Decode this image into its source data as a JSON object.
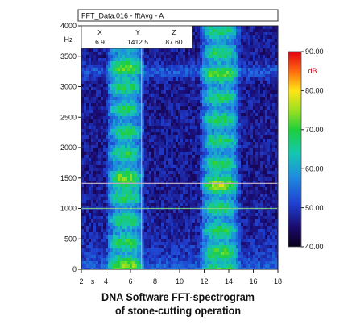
{
  "chart_data": {
    "type": "heatmap",
    "title_box": "FFT_Data.016 - fftAvg - A",
    "xlabel": "s",
    "ylabel": "Hz",
    "x_ticks": [
      "2",
      "4",
      "6",
      "8",
      "10",
      "12",
      "14",
      "16",
      "18"
    ],
    "y_ticks": [
      "0",
      "500",
      "1000",
      "1500",
      "2000",
      "2500",
      "3000",
      "3500",
      "4000"
    ],
    "xlim": [
      2,
      18
    ],
    "ylim": [
      0,
      4000
    ],
    "colorbar": {
      "unit": "dB",
      "range": [
        40,
        90
      ],
      "ticks": [
        "40.00",
        "50.00",
        "60.00",
        "70.00",
        "80.00",
        "90.00"
      ]
    },
    "cursor": {
      "headers": [
        "X",
        "Y",
        "Z"
      ],
      "values": [
        "6.9",
        "1412.5",
        "87.60"
      ],
      "x": 6.9,
      "y": 1412.5
    },
    "reference_line_hz": 1000,
    "bands": [
      {
        "x_range": [
          4.0,
          7.2
        ],
        "peak_db": 88
      },
      {
        "x_range": [
          11.6,
          15.0
        ],
        "peak_db": 88
      }
    ]
  },
  "caption": {
    "line1": "DNA Software FFT-spectrogram",
    "line2": "of stone-cutting operation"
  }
}
